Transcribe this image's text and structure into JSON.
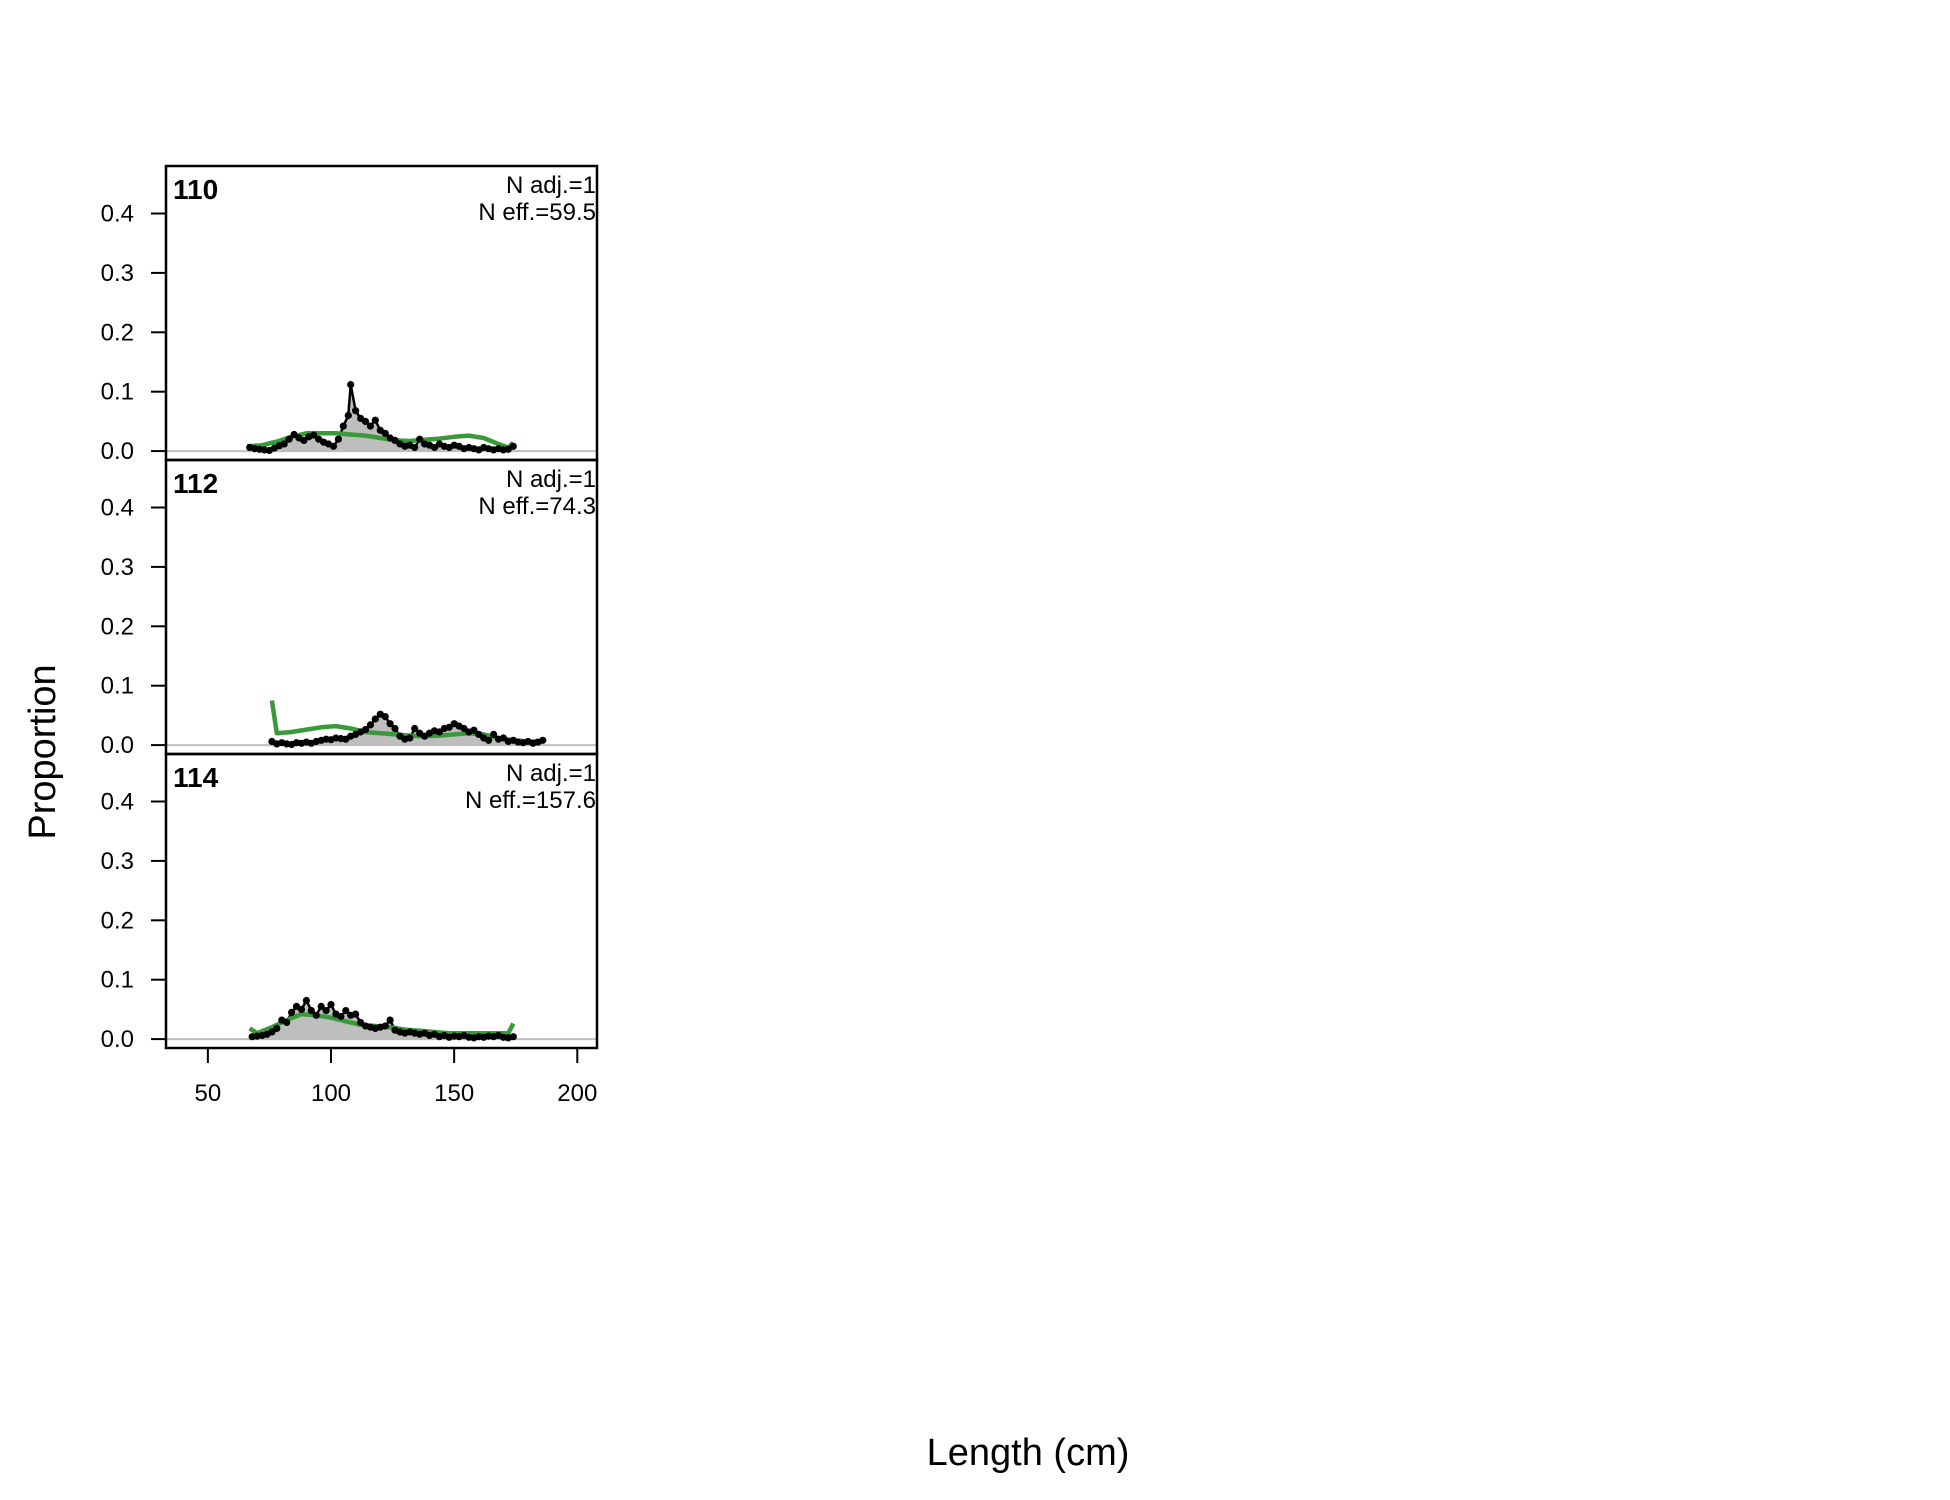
{
  "chart_data": {
    "type": "area",
    "xlabel": "Length (cm)",
    "ylabel": "Proportion",
    "xlim": [
      33,
      208
    ],
    "ylim": [
      -0.015,
      0.48
    ],
    "xticks": [
      50,
      100,
      150,
      200
    ],
    "yticks": [
      0.0,
      0.1,
      0.2,
      0.3,
      0.4
    ],
    "observed_color": "#000000",
    "fill_color": "#bebebe",
    "expected_color": "#3a9a3a",
    "baseline_color": "#bebebe",
    "panels": [
      {
        "label": "110",
        "n_adj": "N adj.=1",
        "n_eff": "N eff.=59.5",
        "observed": [
          [
            67,
            0.006
          ],
          [
            69,
            0.004
          ],
          [
            71,
            0.003
          ],
          [
            73,
            0.002
          ],
          [
            75,
            0.001
          ],
          [
            77,
            0.005
          ],
          [
            79,
            0.009
          ],
          [
            81,
            0.012
          ],
          [
            83,
            0.02
          ],
          [
            85,
            0.028
          ],
          [
            87,
            0.022
          ],
          [
            89,
            0.018
          ],
          [
            91,
            0.024
          ],
          [
            93,
            0.027
          ],
          [
            95,
            0.02
          ],
          [
            97,
            0.015
          ],
          [
            99,
            0.012
          ],
          [
            101,
            0.008
          ],
          [
            103,
            0.02
          ],
          [
            105,
            0.042
          ],
          [
            107,
            0.06
          ],
          [
            108,
            0.112
          ],
          [
            110,
            0.068
          ],
          [
            112,
            0.055
          ],
          [
            114,
            0.05
          ],
          [
            116,
            0.042
          ],
          [
            118,
            0.052
          ],
          [
            120,
            0.035
          ],
          [
            122,
            0.03
          ],
          [
            124,
            0.022
          ],
          [
            126,
            0.018
          ],
          [
            128,
            0.012
          ],
          [
            130,
            0.008
          ],
          [
            132,
            0.01
          ],
          [
            134,
            0.006
          ],
          [
            136,
            0.02
          ],
          [
            138,
            0.012
          ],
          [
            140,
            0.01
          ],
          [
            142,
            0.006
          ],
          [
            144,
            0.012
          ],
          [
            146,
            0.008
          ],
          [
            148,
            0.006
          ],
          [
            150,
            0.01
          ],
          [
            152,
            0.008
          ],
          [
            154,
            0.004
          ],
          [
            156,
            0.006
          ],
          [
            158,
            0.004
          ],
          [
            160,
            0.002
          ],
          [
            162,
            0.006
          ],
          [
            164,
            0.004
          ],
          [
            166,
            0.002
          ],
          [
            168,
            0.004
          ],
          [
            170,
            0.002
          ],
          [
            172,
            0.003
          ],
          [
            174,
            0.008
          ]
        ],
        "expected": [
          [
            66,
            0.008
          ],
          [
            72,
            0.01
          ],
          [
            78,
            0.016
          ],
          [
            84,
            0.024
          ],
          [
            90,
            0.03
          ],
          [
            96,
            0.03
          ],
          [
            102,
            0.03
          ],
          [
            108,
            0.028
          ],
          [
            114,
            0.026
          ],
          [
            120,
            0.022
          ],
          [
            126,
            0.018
          ],
          [
            132,
            0.017
          ],
          [
            138,
            0.019
          ],
          [
            144,
            0.021
          ],
          [
            150,
            0.024
          ],
          [
            156,
            0.026
          ],
          [
            162,
            0.022
          ],
          [
            168,
            0.012
          ],
          [
            172,
            0.006
          ],
          [
            174,
            0.014
          ]
        ]
      },
      {
        "label": "112",
        "n_adj": "N adj.=1",
        "n_eff": "N eff.=74.3",
        "observed": [
          [
            76,
            0.006
          ],
          [
            78,
            0.002
          ],
          [
            80,
            0.004
          ],
          [
            82,
            0.002
          ],
          [
            84,
            0.001
          ],
          [
            86,
            0.004
          ],
          [
            88,
            0.003
          ],
          [
            90,
            0.005
          ],
          [
            92,
            0.003
          ],
          [
            94,
            0.006
          ],
          [
            96,
            0.008
          ],
          [
            98,
            0.01
          ],
          [
            100,
            0.009
          ],
          [
            102,
            0.012
          ],
          [
            104,
            0.011
          ],
          [
            106,
            0.01
          ],
          [
            108,
            0.015
          ],
          [
            110,
            0.018
          ],
          [
            112,
            0.022
          ],
          [
            114,
            0.026
          ],
          [
            116,
            0.034
          ],
          [
            118,
            0.044
          ],
          [
            120,
            0.052
          ],
          [
            122,
            0.048
          ],
          [
            124,
            0.036
          ],
          [
            126,
            0.028
          ],
          [
            128,
            0.015
          ],
          [
            130,
            0.01
          ],
          [
            132,
            0.012
          ],
          [
            134,
            0.028
          ],
          [
            136,
            0.02
          ],
          [
            138,
            0.015
          ],
          [
            140,
            0.02
          ],
          [
            142,
            0.024
          ],
          [
            144,
            0.022
          ],
          [
            146,
            0.028
          ],
          [
            148,
            0.03
          ],
          [
            150,
            0.036
          ],
          [
            152,
            0.032
          ],
          [
            154,
            0.028
          ],
          [
            156,
            0.022
          ],
          [
            158,
            0.025
          ],
          [
            160,
            0.018
          ],
          [
            162,
            0.012
          ],
          [
            164,
            0.008
          ],
          [
            166,
            0.018
          ],
          [
            168,
            0.01
          ],
          [
            170,
            0.012
          ],
          [
            172,
            0.006
          ],
          [
            174,
            0.008
          ],
          [
            176,
            0.005
          ],
          [
            178,
            0.004
          ],
          [
            180,
            0.006
          ],
          [
            182,
            0.003
          ],
          [
            184,
            0.005
          ],
          [
            186,
            0.008
          ]
        ],
        "expected": [
          [
            76,
            0.075
          ],
          [
            78,
            0.02
          ],
          [
            84,
            0.022
          ],
          [
            90,
            0.026
          ],
          [
            96,
            0.03
          ],
          [
            102,
            0.032
          ],
          [
            108,
            0.028
          ],
          [
            114,
            0.022
          ],
          [
            120,
            0.02
          ],
          [
            126,
            0.018
          ],
          [
            132,
            0.016
          ],
          [
            138,
            0.015
          ],
          [
            144,
            0.016
          ],
          [
            150,
            0.018
          ],
          [
            156,
            0.02
          ],
          [
            162,
            0.018
          ],
          [
            168,
            0.012
          ],
          [
            174,
            0.008
          ],
          [
            180,
            0.006
          ],
          [
            186,
            0.006
          ]
        ]
      },
      {
        "label": "114",
        "n_adj": "N adj.=1",
        "n_eff": "N eff.=157.6",
        "observed": [
          [
            68,
            0.004
          ],
          [
            70,
            0.005
          ],
          [
            72,
            0.006
          ],
          [
            74,
            0.008
          ],
          [
            76,
            0.012
          ],
          [
            78,
            0.018
          ],
          [
            80,
            0.032
          ],
          [
            82,
            0.028
          ],
          [
            84,
            0.045
          ],
          [
            86,
            0.055
          ],
          [
            88,
            0.05
          ],
          [
            90,
            0.065
          ],
          [
            92,
            0.048
          ],
          [
            94,
            0.04
          ],
          [
            96,
            0.055
          ],
          [
            98,
            0.048
          ],
          [
            100,
            0.058
          ],
          [
            102,
            0.042
          ],
          [
            104,
            0.038
          ],
          [
            106,
            0.048
          ],
          [
            108,
            0.04
          ],
          [
            110,
            0.042
          ],
          [
            112,
            0.028
          ],
          [
            114,
            0.022
          ],
          [
            116,
            0.02
          ],
          [
            118,
            0.018
          ],
          [
            120,
            0.02
          ],
          [
            122,
            0.022
          ],
          [
            124,
            0.032
          ],
          [
            126,
            0.015
          ],
          [
            128,
            0.012
          ],
          [
            130,
            0.01
          ],
          [
            132,
            0.012
          ],
          [
            134,
            0.01
          ],
          [
            136,
            0.008
          ],
          [
            138,
            0.01
          ],
          [
            140,
            0.006
          ],
          [
            142,
            0.008
          ],
          [
            144,
            0.004
          ],
          [
            146,
            0.006
          ],
          [
            148,
            0.003
          ],
          [
            150,
            0.005
          ],
          [
            152,
            0.004
          ],
          [
            154,
            0.006
          ],
          [
            156,
            0.003
          ],
          [
            158,
            0.002
          ],
          [
            160,
            0.004
          ],
          [
            162,
            0.003
          ],
          [
            164,
            0.005
          ],
          [
            166,
            0.004
          ],
          [
            168,
            0.006
          ],
          [
            170,
            0.003
          ],
          [
            172,
            0.002
          ],
          [
            174,
            0.004
          ]
        ],
        "expected": [
          [
            67,
            0.018
          ],
          [
            70,
            0.01
          ],
          [
            76,
            0.02
          ],
          [
            82,
            0.032
          ],
          [
            88,
            0.042
          ],
          [
            94,
            0.04
          ],
          [
            100,
            0.036
          ],
          [
            106,
            0.03
          ],
          [
            112,
            0.024
          ],
          [
            118,
            0.022
          ],
          [
            124,
            0.02
          ],
          [
            130,
            0.016
          ],
          [
            136,
            0.014
          ],
          [
            142,
            0.012
          ],
          [
            148,
            0.01
          ],
          [
            154,
            0.01
          ],
          [
            160,
            0.01
          ],
          [
            166,
            0.01
          ],
          [
            172,
            0.01
          ],
          [
            174,
            0.026
          ]
        ]
      }
    ]
  }
}
